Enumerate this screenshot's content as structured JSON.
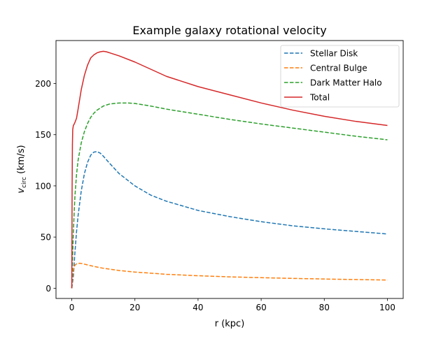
{
  "chart_data": {
    "type": "line",
    "title": "Example galaxy rotational velocity",
    "xlabel": "r (kpc)",
    "ylabel": {
      "main": "v",
      "sub": "circ",
      "units": " (km/s)"
    },
    "xlim": [
      -5,
      105
    ],
    "ylim": [
      -10,
      242
    ],
    "xticks": [
      0,
      20,
      40,
      60,
      80,
      100
    ],
    "yticks": [
      0,
      50,
      100,
      150,
      200
    ],
    "grid": false,
    "legend_position": "top-right",
    "series": [
      {
        "name": "Stellar Disk",
        "color": "#1f77b4",
        "dashed": true,
        "x": [
          0,
          0.5,
          1,
          1.5,
          2,
          3,
          4,
          5,
          6,
          7,
          8,
          9,
          10,
          12,
          15,
          20,
          25,
          30,
          40,
          50,
          60,
          70,
          80,
          90,
          100
        ],
        "y": [
          0,
          12,
          35,
          55,
          71,
          95,
          112,
          123,
          130,
          133,
          133.5,
          132,
          129,
          122,
          112,
          100,
          91,
          85,
          76,
          70,
          65,
          61,
          58,
          55.5,
          53
        ]
      },
      {
        "name": "Central Bulge",
        "color": "#ff7f0e",
        "dashed": true,
        "x": [
          0,
          0.3,
          0.6,
          1,
          1.5,
          2,
          2.5,
          3,
          4,
          5,
          7,
          10,
          15,
          20,
          30,
          40,
          50,
          60,
          70,
          80,
          90,
          100
        ],
        "y": [
          0,
          14,
          20,
          22.5,
          23.8,
          24.3,
          24.4,
          24.2,
          23.5,
          22.8,
          21.3,
          19.5,
          17.3,
          15.8,
          13.6,
          12.2,
          11.1,
          10.3,
          9.6,
          9,
          8.5,
          8
        ]
      },
      {
        "name": "Dark Matter Halo",
        "color": "#2ca02c",
        "dashed": true,
        "x": [
          0,
          0.2,
          0.4,
          0.6,
          0.8,
          1,
          1.5,
          2,
          3,
          4,
          5,
          6,
          7,
          8,
          10,
          12,
          15,
          18,
          20,
          25,
          30,
          40,
          50,
          60,
          70,
          80,
          90,
          100
        ],
        "y": [
          0,
          25,
          45,
          62,
          77,
          90,
          111,
          125,
          142,
          153,
          161,
          167,
          171,
          174,
          178,
          180,
          181,
          181,
          180.5,
          178,
          175,
          170,
          165,
          160.5,
          156.5,
          152.5,
          148.5,
          145
        ]
      },
      {
        "name": "Total",
        "color": "#d62728",
        "dashed": false,
        "x": [
          0,
          0.1,
          0.2,
          0.3,
          0.5,
          0.7,
          1,
          1.5,
          2,
          3,
          4,
          5,
          6,
          7,
          8,
          9,
          10,
          11,
          12,
          15,
          20,
          25,
          30,
          40,
          50,
          60,
          70,
          80,
          90,
          100
        ],
        "y": [
          0,
          95,
          140,
          155,
          159,
          160,
          162,
          166,
          175,
          194,
          208,
          218,
          225,
          228,
          230,
          231,
          231.5,
          231,
          230,
          227,
          221,
          214,
          207,
          197,
          189,
          181,
          174,
          168,
          163,
          159
        ]
      }
    ]
  }
}
